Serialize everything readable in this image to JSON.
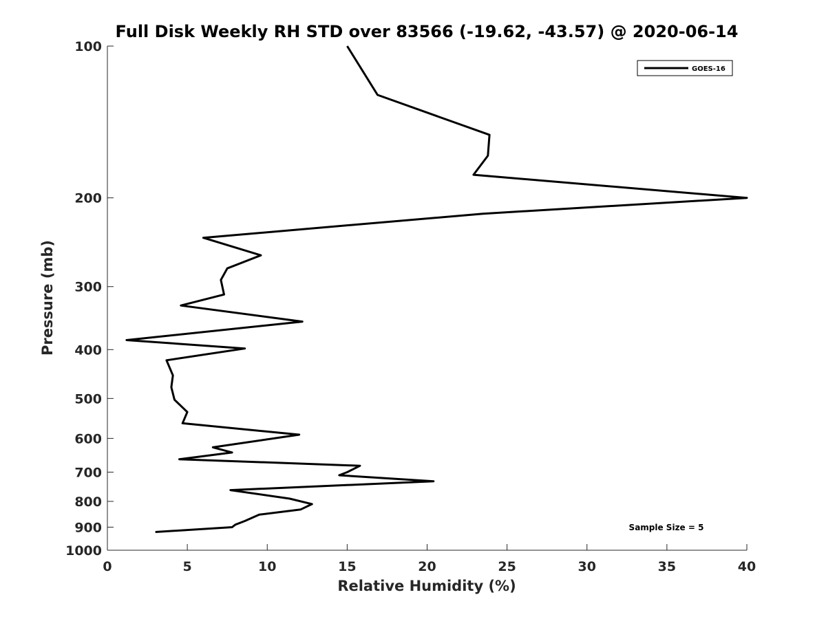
{
  "chart_data": {
    "type": "line",
    "title": "Full Disk Weekly RH STD over 83566 (-19.62, -43.57) @ 2020-06-14",
    "xlabel": "Relative Humidity (%)",
    "ylabel": "Pressure (mb)",
    "xlim": [
      0,
      40
    ],
    "ylim": [
      100,
      1000
    ],
    "y_scale": "log",
    "y_reversed": true,
    "grid": false,
    "legend_position": "top-right",
    "x_ticks": [
      "0",
      "5",
      "10",
      "15",
      "20",
      "25",
      "30",
      "35",
      "40"
    ],
    "y_ticks": [
      "100",
      "200",
      "300",
      "400",
      "500",
      "600",
      "700",
      "800",
      "900",
      "1000"
    ],
    "annotation": "Sample Size = 5",
    "series": [
      {
        "name": "GOES-16",
        "color": "#000000",
        "x": [
          15.0,
          16.9,
          23.9,
          23.8,
          22.9,
          40.0,
          23.5,
          6.0,
          9.6,
          7.5,
          7.1,
          7.3,
          4.6,
          12.2,
          1.2,
          8.6,
          3.7,
          4.1,
          4.0,
          4.2,
          5.0,
          4.7,
          12.0,
          6.6,
          7.8,
          4.5,
          15.8,
          15.0,
          14.5,
          20.4,
          7.7,
          11.4,
          12.8,
          12.1,
          9.5,
          8.6,
          8.0,
          7.8,
          3.0
        ],
        "y": [
          100,
          125,
          150,
          165,
          180,
          200,
          215,
          240,
          260,
          276,
          291,
          311,
          327,
          352,
          383,
          398,
          420,
          450,
          475,
          503,
          532,
          560,
          590,
          625,
          640,
          660,
          680,
          700,
          710,
          730,
          760,
          790,
          810,
          830,
          850,
          875,
          890,
          900,
          920
        ]
      }
    ]
  }
}
